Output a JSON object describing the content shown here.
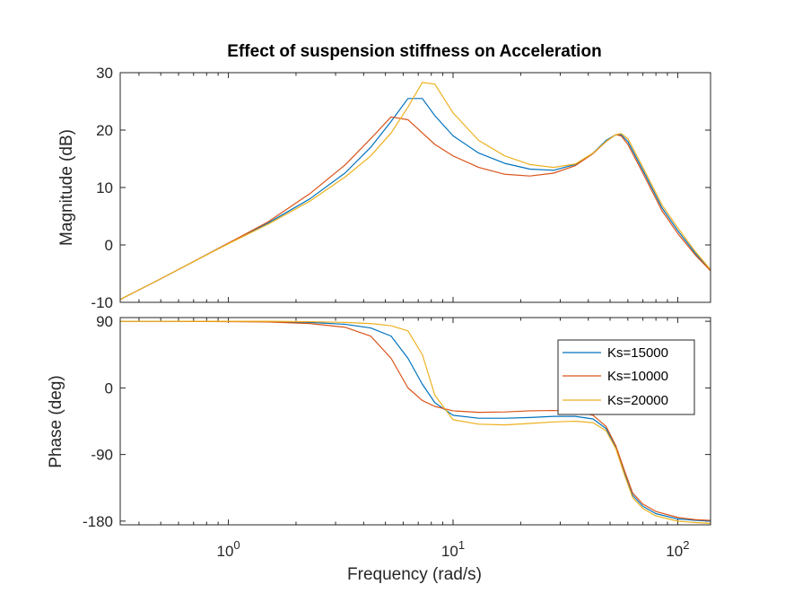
{
  "chart_data": {
    "type": "line",
    "title": "Effect of suspension stiffness on Acceleration",
    "xlabel": "Frequency  (rad/s)",
    "xscale": "log",
    "xlim": [
      0.33,
      140
    ],
    "x_ticks": [
      {
        "value": 1,
        "base": "10",
        "exp": "0"
      },
      {
        "value": 10,
        "base": "10",
        "exp": "1"
      },
      {
        "value": 100,
        "base": "10",
        "exp": "2"
      }
    ],
    "legend": {
      "placement": "inside-right",
      "entries": [
        "Ks=15000",
        "Ks=10000",
        "Ks=20000"
      ]
    },
    "panels": [
      {
        "name": "magnitude",
        "ylabel": "Magnitude (dB)",
        "ylim": [
          -10,
          30
        ],
        "y_ticks": [
          30,
          20,
          10,
          0,
          -10
        ],
        "y_tick_labels": [
          "30",
          "20",
          "10",
          "0",
          "-10"
        ],
        "series": [
          {
            "name": "Ks=15000",
            "color": "#0072BD",
            "x": [
              0.33,
              0.5,
              0.7,
              1.0,
              1.5,
              2.3,
              3.3,
              4.3,
              5.3,
              6.3,
              7.3,
              8.3,
              10,
              13,
              17,
              22,
              28,
              35,
              42,
              48,
              53,
              56,
              60,
              70,
              85,
              100,
              120,
              140
            ],
            "y": [
              -9.5,
              -5.9,
              -2.9,
              0.3,
              3.8,
              8.0,
              12.5,
              17.0,
              21.5,
              25.5,
              25.5,
              22.5,
              19.0,
              16.0,
              14.2,
              13.2,
              13.0,
              14.0,
              16.0,
              18.2,
              19.2,
              19.2,
              18.0,
              13.0,
              6.5,
              2.5,
              -1.5,
              -4.5
            ]
          },
          {
            "name": "Ks=10000",
            "color": "#D95319",
            "x": [
              0.33,
              0.5,
              0.7,
              1.0,
              1.5,
              2.3,
              3.3,
              4.3,
              5.3,
              6.3,
              7.3,
              8.3,
              10,
              13,
              17,
              22,
              28,
              35,
              42,
              48,
              53,
              56,
              60,
              70,
              85,
              100,
              120,
              140
            ],
            "y": [
              -9.5,
              -5.9,
              -2.9,
              0.3,
              4.0,
              8.9,
              13.9,
              18.5,
              22.3,
              21.8,
              19.5,
              17.5,
              15.5,
              13.5,
              12.3,
              12.0,
              12.5,
              13.8,
              15.9,
              18.0,
              19.2,
              19.0,
              17.5,
              12.5,
              6.0,
              2.0,
              -1.8,
              -4.5
            ]
          },
          {
            "name": "Ks=20000",
            "color": "#EDB120",
            "x": [
              0.33,
              0.5,
              0.7,
              1.0,
              1.5,
              2.3,
              3.3,
              4.3,
              5.3,
              6.3,
              7.3,
              8.3,
              10,
              13,
              17,
              22,
              28,
              35,
              42,
              48,
              53,
              56,
              60,
              70,
              85,
              100,
              120,
              140
            ],
            "y": [
              -9.5,
              -5.9,
              -2.9,
              0.2,
              3.6,
              7.6,
              11.8,
              15.5,
              19.5,
              24.0,
              28.3,
              28.0,
              23.0,
              18.2,
              15.5,
              14.0,
              13.5,
              14.1,
              16.0,
              18.0,
              19.2,
              19.4,
              18.5,
              13.5,
              7.0,
              3.0,
              -1.2,
              -4.3
            ]
          }
        ]
      },
      {
        "name": "phase",
        "ylabel": "Phase (deg)",
        "ylim": [
          -185,
          95
        ],
        "y_ticks": [
          90,
          0,
          -90,
          -180
        ],
        "y_tick_labels": [
          "90",
          "0",
          "-90",
          "-180"
        ],
        "series": [
          {
            "name": "Ks=15000",
            "color": "#0072BD",
            "x": [
              0.33,
              0.5,
              1.0,
              1.5,
              2.3,
              3.3,
              4.3,
              5.3,
              6.3,
              7.3,
              8.3,
              10,
              13,
              17,
              22,
              28,
              35,
              42,
              48,
              53,
              58,
              63,
              70,
              80,
              100,
              120,
              140
            ],
            "y": [
              90,
              90,
              90,
              89.5,
              88.5,
              86,
              81,
              70,
              40,
              5,
              -20,
              -37,
              -41,
              -41,
              -40,
              -38.5,
              -38.5,
              -42,
              -55,
              -80,
              -115,
              -145,
              -160,
              -170,
              -177,
              -179,
              -180
            ]
          },
          {
            "name": "Ks=10000",
            "color": "#D95319",
            "x": [
              0.33,
              0.5,
              1.0,
              1.5,
              2.3,
              3.3,
              4.3,
              5.3,
              6.3,
              7.3,
              8.3,
              10,
              13,
              17,
              22,
              28,
              35,
              42,
              48,
              53,
              58,
              63,
              70,
              80,
              100,
              120,
              140
            ],
            "y": [
              90,
              90,
              89.5,
              89,
              87,
              82,
              70,
              40,
              0,
              -17,
              -25,
              -31,
              -33,
              -32.5,
              -31,
              -30.5,
              -31.5,
              -37,
              -52,
              -78,
              -112,
              -142,
              -157,
              -167,
              -175,
              -178,
              -179
            ]
          },
          {
            "name": "Ks=20000",
            "color": "#EDB120",
            "x": [
              0.33,
              0.5,
              1.0,
              1.5,
              2.3,
              3.3,
              4.3,
              5.3,
              6.3,
              7.3,
              8.3,
              10,
              13,
              17,
              22,
              28,
              35,
              42,
              48,
              53,
              58,
              63,
              70,
              80,
              100,
              120,
              140
            ],
            "y": [
              90,
              90,
              90,
              90,
              89.5,
              88.5,
              87,
              84,
              77,
              45,
              -10,
              -43,
              -49,
              -50,
              -48,
              -46,
              -45,
              -47,
              -58,
              -82,
              -118,
              -148,
              -163,
              -173,
              -180,
              -182,
              -183
            ]
          }
        ]
      }
    ]
  }
}
